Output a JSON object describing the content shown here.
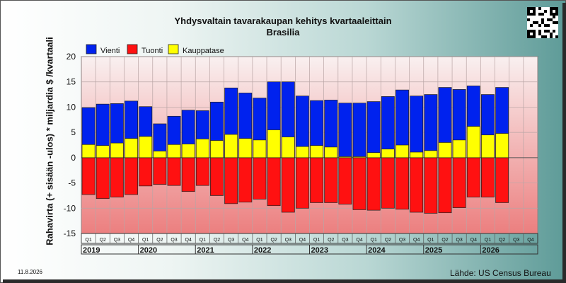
{
  "header": {
    "title": "Yhdysvaltain tavarakaupan kehitys kvartaaleittain",
    "subtitle": "Brasilia"
  },
  "footer": {
    "date": "11.8.2026",
    "source": "Lähde: US Census Bureau"
  },
  "chart_data": {
    "type": "bar",
    "title": "Yhdysvaltain tavarakaupan kehitys kvartaaleittain",
    "subtitle": "Brasilia",
    "ylabel": "Rahavirta (+ sisään -ulos) * miljardia $ /kvartaali",
    "ylim": [
      -15,
      20
    ],
    "yticks": [
      -15,
      -10,
      -5,
      0,
      5,
      10,
      15,
      20
    ],
    "grid": true,
    "legend_position": "top-left",
    "colors": {
      "vienti": "#0022ee",
      "tuonti": "#ff1111",
      "kauppatase": "#ffff00"
    },
    "quarter_labels": [
      "Q1",
      "Q2",
      "Q3",
      "Q4"
    ],
    "years": [
      "2019",
      "2020",
      "2021",
      "2022",
      "2023",
      "2024",
      "2025",
      "2026"
    ],
    "categories": [
      "2019 Q1",
      "2019 Q2",
      "2019 Q3",
      "2019 Q4",
      "2020 Q1",
      "2020 Q2",
      "2020 Q3",
      "2020 Q4",
      "2021 Q1",
      "2021 Q2",
      "2021 Q3",
      "2021 Q4",
      "2022 Q1",
      "2022 Q2",
      "2022 Q3",
      "2022 Q4",
      "2023 Q1",
      "2023 Q2",
      "2023 Q3",
      "2023 Q4",
      "2024 Q1",
      "2024 Q2",
      "2024 Q3",
      "2024 Q4",
      "2025 Q1",
      "2025 Q2",
      "2025 Q3",
      "2025 Q4",
      "2026 Q1",
      "2026 Q2",
      "2026 Q3",
      "2026 Q4"
    ],
    "series": [
      {
        "name": "Vienti",
        "values": [
          9.9,
          10.6,
          10.7,
          11.2,
          10.1,
          6.7,
          8.2,
          9.4,
          9.3,
          11.0,
          13.8,
          12.8,
          11.8,
          15.0,
          15.0,
          12.2,
          11.3,
          11.4,
          10.8,
          10.8,
          11.1,
          12.1,
          13.4,
          12.2,
          12.5,
          13.9,
          13.5,
          14.2,
          12.5,
          13.9,
          null,
          null
        ]
      },
      {
        "name": "Tuonti",
        "values": [
          -7.3,
          -8.1,
          -7.8,
          -7.3,
          -5.6,
          -5.3,
          -5.5,
          -6.7,
          -5.5,
          -7.5,
          -9.1,
          -8.8,
          -8.2,
          -9.5,
          -10.8,
          -10.0,
          -8.9,
          -8.9,
          -9.2,
          -10.3,
          -10.4,
          -10.0,
          -10.2,
          -10.8,
          -11.0,
          -10.9,
          -9.9,
          -7.8,
          -7.8,
          -8.9,
          null,
          null
        ]
      },
      {
        "name": "Kauppatase",
        "values": [
          2.6,
          2.4,
          2.9,
          3.8,
          4.2,
          1.3,
          2.6,
          2.7,
          3.7,
          3.4,
          4.6,
          3.8,
          3.5,
          5.5,
          4.1,
          2.2,
          2.4,
          2.1,
          0.2,
          0.2,
          1.0,
          1.7,
          2.5,
          1.1,
          1.4,
          3.0,
          3.5,
          6.2,
          4.5,
          4.8,
          null,
          null
        ]
      }
    ]
  }
}
